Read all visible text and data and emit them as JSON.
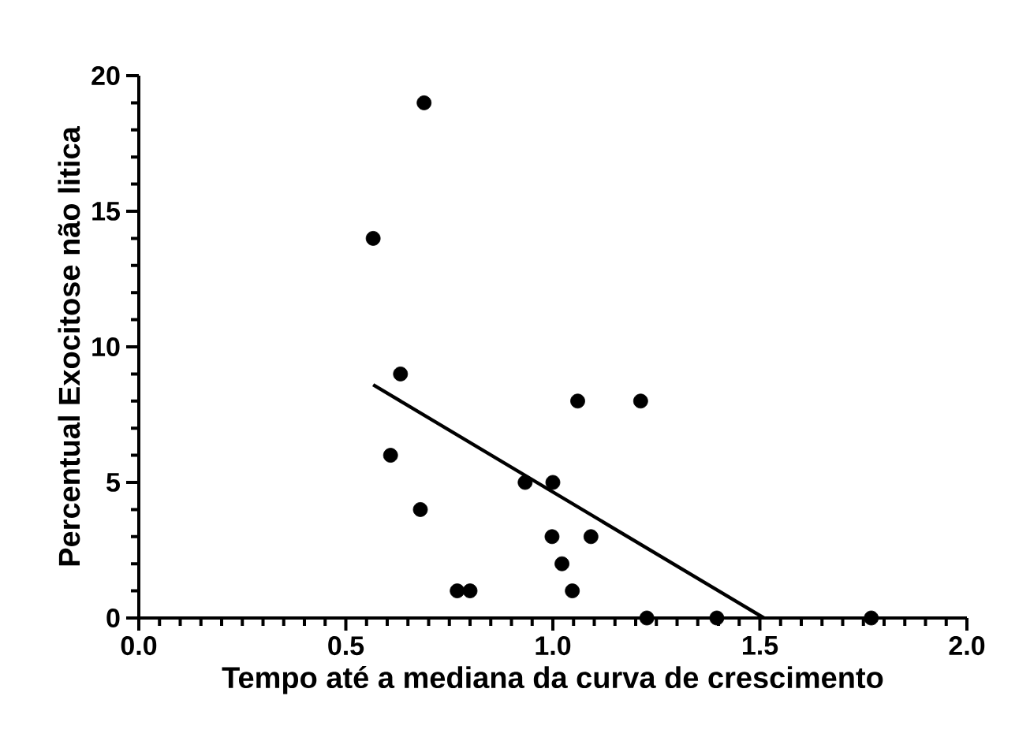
{
  "chart_data": {
    "type": "scatter",
    "xlabel": "Tempo até a mediana da curva de crescimento",
    "ylabel": "Percentual Exocitose não litica",
    "xlim": [
      0,
      2
    ],
    "ylim": [
      0,
      20
    ],
    "xticks": [
      {
        "value": 0,
        "label": "0.0"
      },
      {
        "value": 0.5,
        "label": "0.5"
      },
      {
        "value": 1,
        "label": "1.0"
      },
      {
        "value": 1.5,
        "label": "1.5"
      },
      {
        "value": 2,
        "label": "2.0"
      }
    ],
    "yticks": [
      0,
      5,
      10,
      15,
      20
    ],
    "grid": false,
    "marker": "circle",
    "series": [
      {
        "color": "#000000",
        "x": [
          0.566,
          0.689,
          0.632,
          0.608,
          0.68,
          0.769,
          0.8,
          0.933,
          1.0,
          0.998,
          1.092,
          1.022,
          1.047,
          1.06,
          1.212,
          1.227,
          1.396,
          1.769
        ],
        "values": [
          14,
          19,
          9,
          6,
          4,
          1,
          1,
          5,
          5,
          3,
          3,
          2,
          1,
          8,
          8,
          0,
          0,
          0
        ]
      },
      {
        "type": "line",
        "marker": "none",
        "color": "#000000",
        "x": [
          0.566,
          1.51
        ],
        "values": [
          8.6,
          0
        ]
      }
    ]
  }
}
